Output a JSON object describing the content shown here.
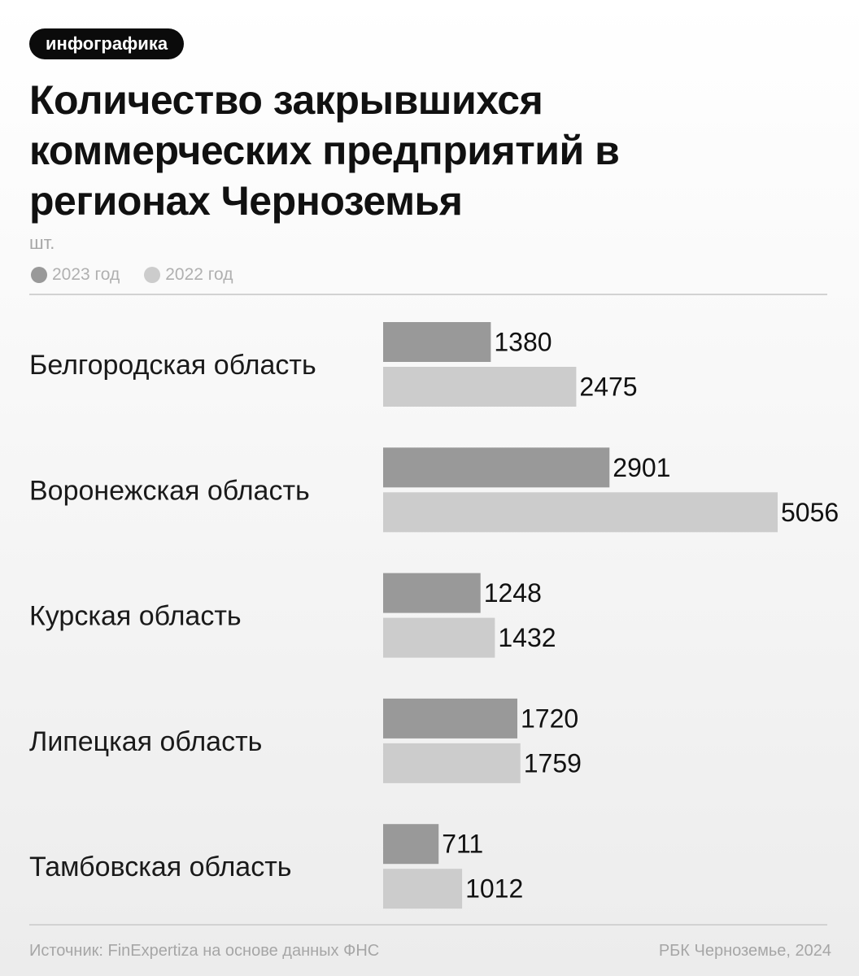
{
  "tag": "инфографика",
  "title": "Количество закрывшихся коммерческих предприятий в регионах Черноземья",
  "unit": "шт.",
  "footer": {
    "source": "Источник: FinExpertiza на основе данных ФНС",
    "credit": "РБК Черноземье, 2024"
  },
  "chart_data": {
    "type": "bar",
    "orientation": "horizontal",
    "categories": [
      "Белгородская область",
      "Воронежская область",
      "Курская область",
      "Липецкая область",
      "Тамбовская область"
    ],
    "series": [
      {
        "name": "2023 год",
        "values": [
          1380,
          2901,
          1248,
          1720,
          711
        ],
        "color": "#999999"
      },
      {
        "name": "2022 год",
        "values": [
          2475,
          5056,
          1432,
          1759,
          1012
        ],
        "color": "#cccccc"
      }
    ],
    "xlim": [
      0,
      5056
    ],
    "grid": false,
    "legend": "top-left"
  }
}
